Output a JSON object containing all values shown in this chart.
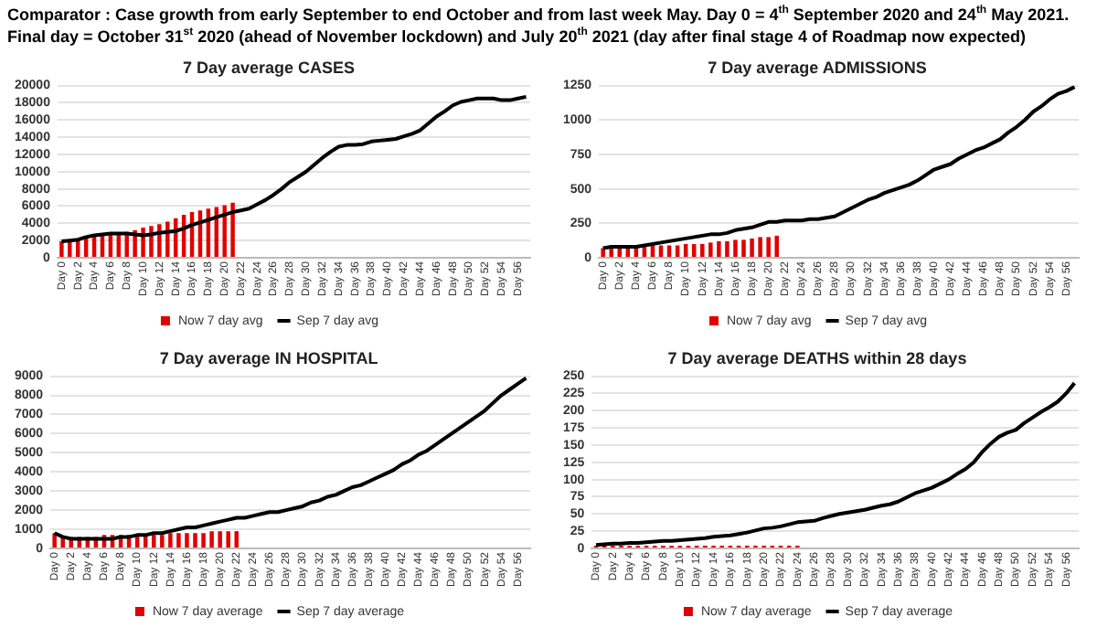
{
  "chart_data": [
    {
      "type": "bar",
      "title": "7 Day average CASES",
      "annotations": [
        "Comparator : Case growth from early September to end October and from last week May.  Day 0 = 4$^{th}$ September 2020 and 24$^{th}$ May 2021.",
        "Final day = October 31$^{st}$ 2020 (ahead of November lockdown) and July 20$^{th}$ 2021 (day after final stage 4 of Roadmap now expected)"
      ],
      "categories": [
        "Day 0",
        null,
        "Day 2",
        null,
        "Day 4",
        null,
        "Day 6",
        null,
        "Day 8",
        null,
        "Day 10",
        null,
        "Day 12",
        null,
        "Day 14",
        null,
        "Day 16",
        null,
        "Day 18",
        null,
        "Day 20",
        null,
        "Day 22",
        null,
        "Day 24",
        null,
        "Day 26",
        null,
        "Day 28",
        null,
        "Day 30",
        null,
        "Day 32",
        null,
        "Day 34",
        null,
        "Day 36",
        null,
        "Day 38",
        null,
        "Day 40",
        null,
        "Day 42",
        null,
        "Day 44",
        null,
        "Day 46",
        null,
        "Day 48",
        null,
        "Day 50",
        null,
        "Day 52",
        null,
        "Day 54",
        null,
        "Day 56",
        null
      ],
      "series": [
        {
          "name": "Now 7 day avg",
          "color": "#e00000",
          "values": [
            1900,
            2100,
            2200,
            2400,
            2600,
            2700,
            2800,
            2900,
            3000,
            3200,
            3500,
            3700,
            3900,
            4200,
            4600,
            5000,
            5300,
            5500,
            5700,
            5900,
            6100,
            6400,
            null,
            null,
            null,
            null,
            null,
            null,
            null,
            null,
            null,
            null,
            null,
            null,
            null,
            null,
            null,
            null,
            null,
            null,
            null,
            null,
            null,
            null,
            null,
            null,
            null,
            null,
            null,
            null,
            null,
            null,
            null,
            null,
            null,
            null,
            null,
            null
          ]
        },
        {
          "name": "Sep 7 day avg",
          "type": "line",
          "color": "#000000",
          "values": [
            1900,
            2000,
            2100,
            2400,
            2600,
            2700,
            2800,
            2800,
            2800,
            2700,
            2600,
            2700,
            2900,
            3000,
            3100,
            3400,
            3800,
            4100,
            4400,
            4700,
            5000,
            5300,
            5500,
            5700,
            6200,
            6700,
            7300,
            8000,
            8800,
            9400,
            10000,
            10800,
            11600,
            12300,
            12900,
            13100,
            13100,
            13200,
            13500,
            13600,
            13700,
            13800,
            14100,
            14400,
            14800,
            15600,
            16400,
            17000,
            17700,
            18100,
            18300,
            18500,
            18500,
            18500,
            18300,
            18300,
            18500,
            18700
          ]
        }
      ],
      "ylim": [
        0,
        20000
      ],
      "yticks": [
        0,
        2000,
        4000,
        6000,
        8000,
        10000,
        12000,
        14000,
        16000,
        18000,
        20000
      ],
      "grid": "y",
      "legend": "bottom",
      "marker": "none"
    },
    {
      "type": "bar",
      "title": "7 Day average ADMISSIONS",
      "categories": [
        "Day 0",
        null,
        "Day 2",
        null,
        "Day 4",
        null,
        "Day 6",
        null,
        "Day 8",
        null,
        "Day 10",
        null,
        "Day 12",
        null,
        "Day 14",
        null,
        "Day 16",
        null,
        "Day 18",
        null,
        "Day 20",
        null,
        "Day 22",
        null,
        "Day 24",
        null,
        "Day 26",
        null,
        "Day 28",
        null,
        "Day 30",
        null,
        "Day 32",
        null,
        "Day 34",
        null,
        "Day 36",
        null,
        "Day 38",
        null,
        "Day 40",
        null,
        "Day 42",
        null,
        "Day 44",
        null,
        "Day 46",
        null,
        "Day 48",
        null,
        "Day 50",
        null,
        "Day 52",
        null,
        "Day 54",
        null,
        "Day 56",
        null
      ],
      "series": [
        {
          "name": "Now 7 day avg",
          "color": "#e00000",
          "values": [
            70,
            70,
            80,
            80,
            80,
            80,
            90,
            90,
            90,
            90,
            100,
            100,
            100,
            110,
            120,
            120,
            130,
            130,
            140,
            150,
            150,
            160,
            null,
            null,
            null,
            null,
            null,
            null,
            null,
            null,
            null,
            null,
            null,
            null,
            null,
            null,
            null,
            null,
            null,
            null,
            null,
            null,
            null,
            null,
            null,
            null,
            null,
            null,
            null,
            null,
            null,
            null,
            null,
            null,
            null,
            null,
            null,
            null
          ]
        },
        {
          "name": "Sep 7 day avg",
          "type": "line",
          "color": "#000000",
          "values": [
            70,
            80,
            80,
            80,
            80,
            90,
            100,
            110,
            120,
            130,
            140,
            150,
            160,
            170,
            170,
            180,
            200,
            210,
            220,
            240,
            260,
            260,
            270,
            270,
            270,
            280,
            280,
            290,
            300,
            330,
            360,
            390,
            420,
            440,
            470,
            490,
            510,
            530,
            560,
            600,
            640,
            660,
            680,
            720,
            750,
            780,
            800,
            830,
            860,
            910,
            950,
            1000,
            1060,
            1100,
            1150,
            1190,
            1210,
            1240
          ]
        }
      ],
      "ylim": [
        0,
        1250
      ],
      "yticks": [
        0,
        250,
        500,
        750,
        1000,
        1250
      ],
      "grid": "y",
      "legend": "bottom",
      "marker": "none"
    },
    {
      "type": "bar",
      "title": "7 Day average IN HOSPITAL",
      "categories": [
        "Day 0",
        null,
        "Day 2",
        null,
        "Day 4",
        null,
        "Day 6",
        null,
        "Day 8",
        null,
        "Day 10",
        null,
        "Day 12",
        null,
        "Day 14",
        null,
        "Day 16",
        null,
        "Day 18",
        null,
        "Day 20",
        null,
        "Day 22",
        null,
        "Day 24",
        null,
        "Day 26",
        null,
        "Day 28",
        null,
        "Day 30",
        null,
        "Day 32",
        null,
        "Day 34",
        null,
        "Day 36",
        null,
        "Day 38",
        null,
        "Day 40",
        null,
        "Day 42",
        null,
        "Day 44",
        null,
        "Day 46",
        null,
        "Day 48",
        null,
        "Day 50",
        null,
        "Day 52",
        null,
        "Day 54",
        null,
        "Day 56",
        null
      ],
      "series": [
        {
          "name": "Now 7 day average",
          "color": "#e00000",
          "values": [
            800,
            600,
            600,
            600,
            600,
            600,
            700,
            700,
            700,
            700,
            700,
            700,
            700,
            700,
            800,
            800,
            800,
            800,
            800,
            900,
            900,
            900,
            900,
            null,
            null,
            null,
            null,
            null,
            null,
            null,
            null,
            null,
            null,
            null,
            null,
            null,
            null,
            null,
            null,
            null,
            null,
            null,
            null,
            null,
            null,
            null,
            null,
            null,
            null,
            null,
            null,
            null,
            null,
            null,
            null,
            null,
            null,
            null
          ]
        },
        {
          "name": "Sep 7 day average",
          "type": "line",
          "color": "#000000",
          "values": [
            800,
            600,
            500,
            500,
            500,
            500,
            500,
            500,
            600,
            600,
            700,
            700,
            800,
            800,
            900,
            1000,
            1100,
            1100,
            1200,
            1300,
            1400,
            1500,
            1600,
            1600,
            1700,
            1800,
            1900,
            1900,
            2000,
            2100,
            2200,
            2400,
            2500,
            2700,
            2800,
            3000,
            3200,
            3300,
            3500,
            3700,
            3900,
            4100,
            4400,
            4600,
            4900,
            5100,
            5400,
            5700,
            6000,
            6300,
            6600,
            6900,
            7200,
            7600,
            8000,
            8300,
            8600,
            8900
          ]
        }
      ],
      "ylim": [
        0,
        9000
      ],
      "yticks": [
        0,
        1000,
        2000,
        3000,
        4000,
        5000,
        6000,
        7000,
        8000,
        9000
      ],
      "grid": "y",
      "legend": "bottom",
      "marker": "none"
    },
    {
      "type": "bar",
      "title": "7 Day average DEATHS within 28 days",
      "categories": [
        "Day 0",
        null,
        "Day 2",
        null,
        "Day 4",
        null,
        "Day 6",
        null,
        "Day 8",
        null,
        "Day 10",
        null,
        "Day 12",
        null,
        "Day 14",
        null,
        "Day 16",
        null,
        "Day 18",
        null,
        "Day 20",
        null,
        "Day 22",
        null,
        "Day 24",
        null,
        "Day 26",
        null,
        "Day 28",
        null,
        "Day 30",
        null,
        "Day 32",
        null,
        "Day 34",
        null,
        "Day 36",
        null,
        "Day 38",
        null,
        "Day 40",
        null,
        "Day 42",
        null,
        "Day 44",
        null,
        "Day 46",
        null,
        "Day 48",
        null,
        "Day 50",
        null,
        "Day 52",
        null,
        "Day 54",
        null,
        "Day 56",
        null
      ],
      "series": [
        {
          "name": "Now 7 day average",
          "color": "#e00000",
          "values": [
            4,
            4,
            4,
            4,
            4,
            4,
            4,
            4,
            4,
            4,
            4,
            4,
            4,
            4,
            4,
            4,
            4,
            4,
            4,
            4,
            4,
            4,
            4,
            4,
            4,
            null,
            null,
            null,
            null,
            null,
            null,
            null,
            null,
            null,
            null,
            null,
            null,
            null,
            null,
            null,
            null,
            null,
            null,
            null,
            null,
            null,
            null,
            null,
            null,
            null,
            null,
            null,
            null,
            null,
            null,
            null,
            null,
            null
          ]
        },
        {
          "name": "Sep 7 day average",
          "type": "line",
          "color": "#000000",
          "values": [
            5,
            6,
            7,
            7,
            8,
            8,
            9,
            10,
            11,
            11,
            12,
            13,
            14,
            15,
            17,
            18,
            19,
            21,
            23,
            26,
            29,
            30,
            32,
            35,
            38,
            39,
            40,
            44,
            47,
            50,
            52,
            54,
            56,
            59,
            62,
            64,
            68,
            74,
            80,
            84,
            88,
            94,
            100,
            108,
            115,
            125,
            140,
            152,
            162,
            168,
            172,
            182,
            190,
            198,
            205,
            213,
            225,
            240
          ]
        }
      ],
      "ylim": [
        0,
        250
      ],
      "yticks": [
        0,
        25,
        50,
        75,
        100,
        125,
        150,
        175,
        200,
        225,
        250
      ],
      "grid": "y",
      "legend": "bottom",
      "marker": "none"
    }
  ]
}
